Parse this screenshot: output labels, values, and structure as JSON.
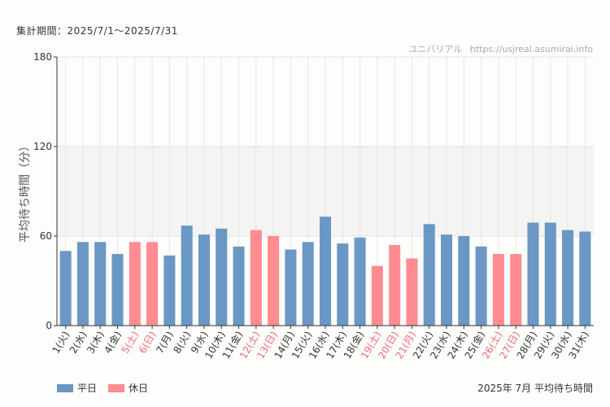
{
  "period_label": "集計期間：2025/7/1〜2025/7/31",
  "credit": {
    "site": "ユニバリアル",
    "url": "https://usjreal.asumirai.info"
  },
  "footer_title": "2025年 7月 平均待ち時間",
  "colors": {
    "weekday": "#6b97c5",
    "holiday": "#fe8c91",
    "holiday_label": "#f26b73",
    "axis": "#333333"
  },
  "chart_data": {
    "type": "bar",
    "title": "2025年 7月 平均待ち時間",
    "ylabel": "平均待ち時間（分）",
    "xlabel": "",
    "ylim": [
      0,
      180
    ],
    "yticks": [
      0,
      60,
      120,
      180
    ],
    "shaded_band": [
      60,
      120
    ],
    "legend": [
      {
        "name": "平日",
        "key": "weekday"
      },
      {
        "name": "休日",
        "key": "holiday"
      }
    ],
    "categories": [
      "1(火)",
      "2(水)",
      "3(木)",
      "4(金)",
      "5(土)",
      "6(日)",
      "7(月)",
      "8(火)",
      "9(水)",
      "10(木)",
      "11(金)",
      "12(土)",
      "13(日)",
      "14(月)",
      "15(火)",
      "16(水)",
      "17(木)",
      "18(金)",
      "19(土)",
      "20(日)",
      "21(月)",
      "22(火)",
      "23(水)",
      "24(木)",
      "25(金)",
      "26(土)",
      "27(日)",
      "28(月)",
      "29(火)",
      "30(水)",
      "31(木)"
    ],
    "values": [
      50,
      56,
      56,
      48,
      56,
      56,
      47,
      67,
      61,
      65,
      53,
      64,
      60,
      51,
      56,
      73,
      55,
      59,
      40,
      54,
      45,
      68,
      61,
      60,
      53,
      48,
      48,
      69,
      69,
      64,
      63
    ],
    "day_type": [
      "weekday",
      "weekday",
      "weekday",
      "weekday",
      "holiday",
      "holiday",
      "weekday",
      "weekday",
      "weekday",
      "weekday",
      "weekday",
      "holiday",
      "holiday",
      "weekday",
      "weekday",
      "weekday",
      "weekday",
      "weekday",
      "holiday",
      "holiday",
      "holiday",
      "weekday",
      "weekday",
      "weekday",
      "weekday",
      "holiday",
      "holiday",
      "weekday",
      "weekday",
      "weekday",
      "weekday"
    ]
  }
}
